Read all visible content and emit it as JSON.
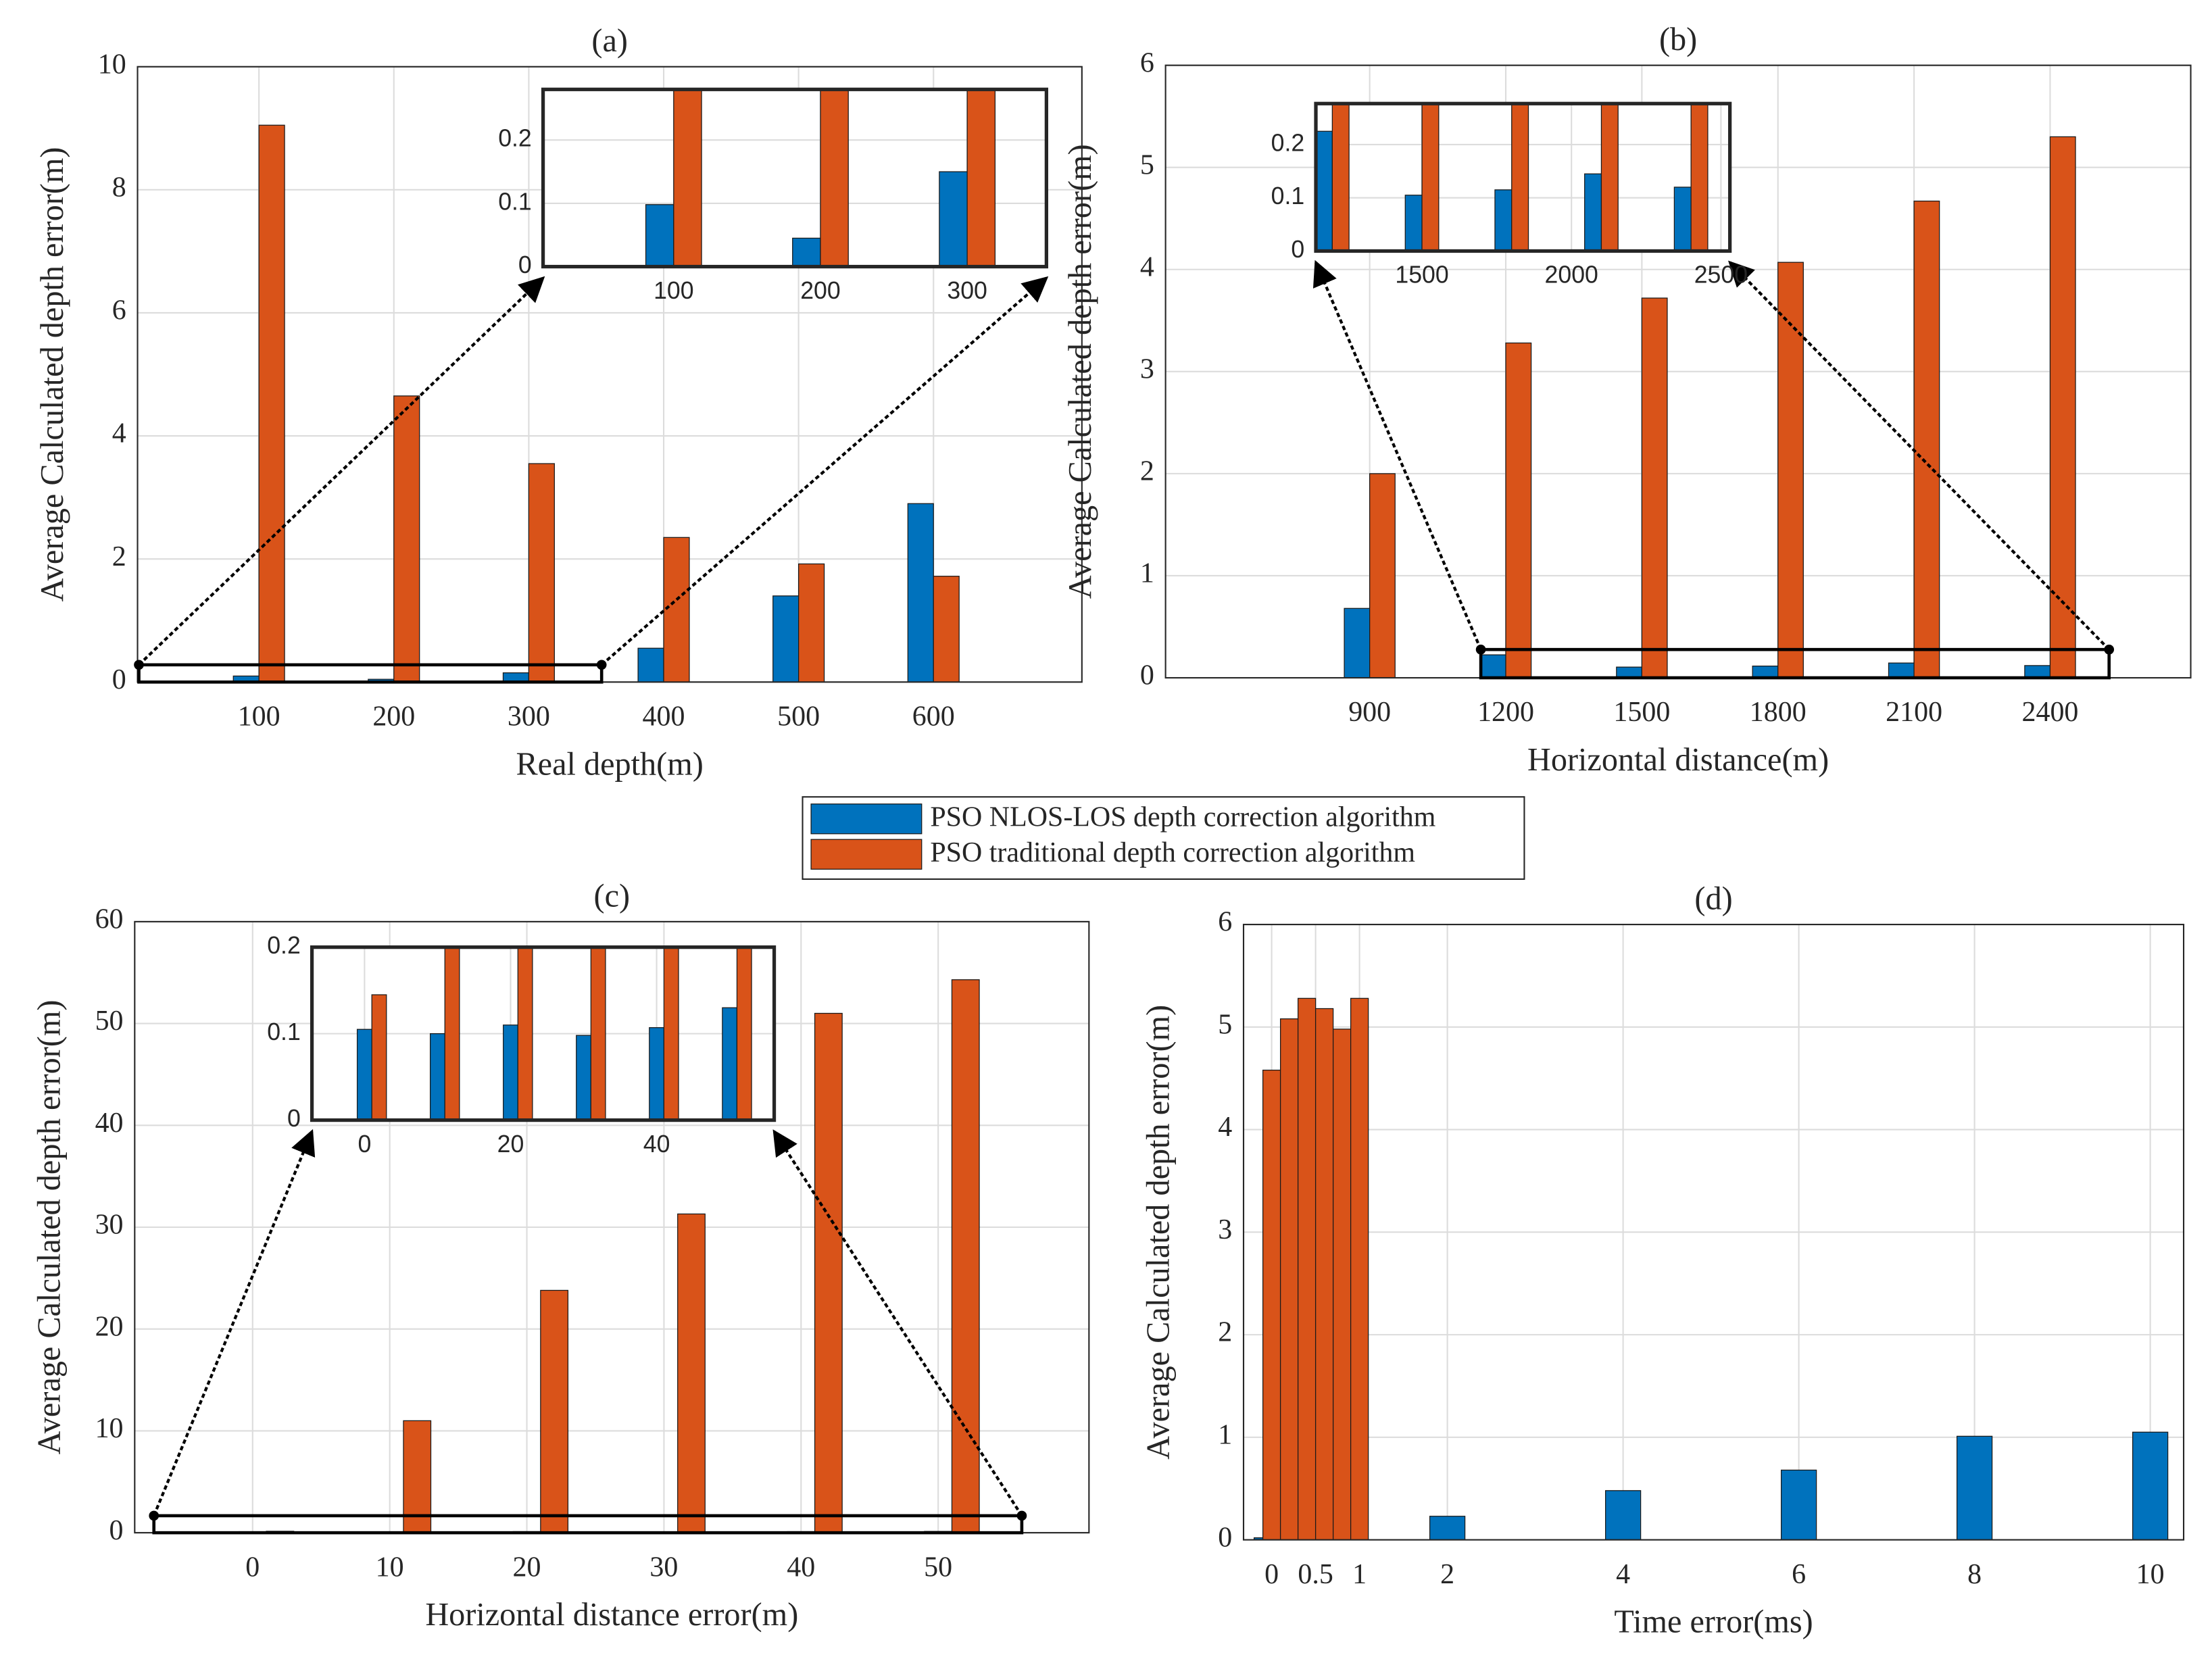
{
  "chart_data": [
    {
      "type": "bar",
      "title": "(a)",
      "x_label": "Real depth(m)",
      "y_label": "Average Calculated depth error(m)",
      "x": [
        100,
        200,
        300,
        400,
        500,
        600
      ],
      "xlim": [
        10,
        710
      ],
      "xticks": [
        100,
        200,
        300,
        400,
        500,
        600
      ],
      "ylim": [
        0,
        10
      ],
      "yticks": [
        0,
        2,
        4,
        6,
        8,
        10
      ],
      "grid": true,
      "series": [
        {
          "name": "PSO NLOS-LOS depth correction algorithm",
          "color": "#0072BD",
          "values": [
            0.098,
            0.045,
            0.15,
            0.55,
            1.4,
            2.9
          ]
        },
        {
          "name": "PSO traditional depth correction algorithm",
          "color": "#D95319",
          "values": [
            9.05,
            4.65,
            3.55,
            2.35,
            1.92,
            1.72
          ]
        }
      ],
      "inset": {
        "xlim": [
          11,
          354
        ],
        "ylim": [
          0,
          0.28
        ],
        "xticks": [
          100,
          200,
          300
        ],
        "yticks": [
          0,
          0.1,
          0.2
        ]
      }
    },
    {
      "type": "bar",
      "title": "(b)",
      "x_label": "Horizontal distance(m)",
      "y_label": "Average Calculated depth error(m)",
      "x": [
        900,
        1200,
        1500,
        1800,
        2100,
        2400
      ],
      "xlim": [
        450,
        2710
      ],
      "xticks": [
        900,
        1200,
        1500,
        1800,
        2100,
        2400
      ],
      "ylim": [
        0,
        6
      ],
      "yticks": [
        0,
        1,
        2,
        3,
        4,
        5,
        6
      ],
      "grid": true,
      "series": [
        {
          "color": "#0072BD",
          "values": [
            0.68,
            0.225,
            0.105,
            0.115,
            0.145,
            0.12
          ]
        },
        {
          "color": "#D95319",
          "values": [
            2.0,
            3.28,
            3.72,
            4.07,
            4.67,
            5.3
          ]
        }
      ],
      "inset": {
        "xlim": [
          1145,
          2530
        ],
        "ylim": [
          0,
          0.277
        ],
        "xticks": [
          1500,
          2000,
          2500
        ],
        "yticks": [
          0,
          0.1,
          0.2
        ]
      }
    },
    {
      "type": "bar",
      "title": "(c)",
      "x_label": "Horizontal distance error(m)",
      "y_label": "Average Calculated depth error(m)",
      "x": [
        0,
        10,
        20,
        30,
        40,
        50
      ],
      "xlim": [
        -8.6,
        61
      ],
      "xticks": [
        0,
        10,
        20,
        30,
        40,
        50
      ],
      "ylim": [
        0,
        60
      ],
      "yticks": [
        0,
        10,
        20,
        30,
        40,
        50,
        60
      ],
      "grid": true,
      "series": [
        {
          "color": "#0072BD",
          "values": [
            0.105,
            0.1,
            0.11,
            0.098,
            0.107,
            0.13
          ]
        },
        {
          "color": "#D95319",
          "values": [
            0.145,
            11,
            23.8,
            31.3,
            51,
            54.3
          ]
        }
      ],
      "inset": {
        "xlim": [
          -7.2,
          56.1
        ],
        "ylim": [
          0,
          0.2
        ],
        "xticks": [
          0,
          20,
          40
        ],
        "yticks": [
          0,
          0.1,
          0.2
        ]
      }
    },
    {
      "type": "bar",
      "title": "(d)",
      "x_label": "Time error(ms)",
      "y_label": "Average Calculated depth error(m)",
      "x": [
        0,
        0.2,
        0.4,
        0.6,
        0.8,
        1,
        2,
        4,
        6,
        8,
        10
      ],
      "xlim": [
        -0.32,
        10.38
      ],
      "xticks": [
        0,
        0.5,
        1,
        2,
        4,
        6,
        8,
        10
      ],
      "ylim": [
        0,
        6
      ],
      "yticks": [
        0,
        1,
        2,
        3,
        4,
        5,
        6
      ],
      "grid": true,
      "series": [
        {
          "color": "#0072BD",
          "values": [
            0.02,
            null,
            null,
            null,
            null,
            null,
            0.23,
            0.48,
            0.68,
            1.01,
            1.05
          ]
        },
        {
          "color": "#D95319",
          "values": [
            4.58,
            5.08,
            5.28,
            5.18,
            4.98,
            5.28,
            null,
            null,
            null,
            null,
            null
          ]
        }
      ]
    }
  ]
}
